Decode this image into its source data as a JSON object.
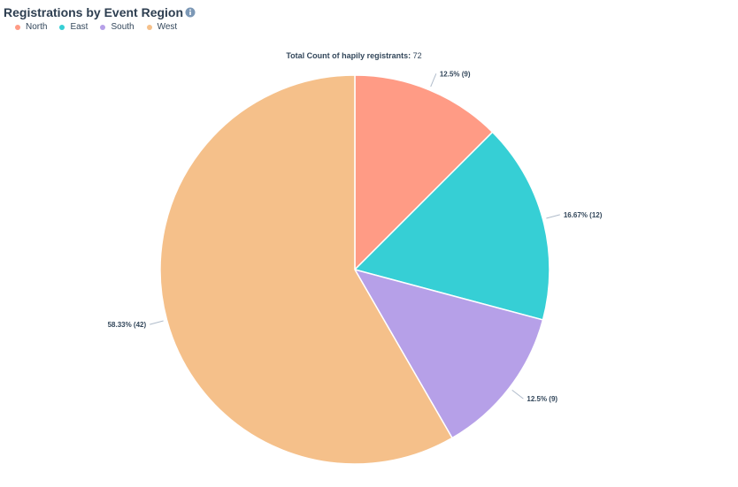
{
  "header": {
    "title": "Registrations by Event Region",
    "info_icon": "info-icon"
  },
  "total": {
    "label": "Total Count of hapily registrants:",
    "value": "72"
  },
  "chart_data": {
    "type": "pie",
    "categories": [
      "North",
      "East",
      "South",
      "West"
    ],
    "values": [
      9,
      12,
      9,
      42
    ],
    "labels": [
      "12.5% (9)",
      "16.67% (12)",
      "12.5% (9)",
      "58.33% (42)"
    ],
    "colors": [
      "#ff9b85",
      "#36cfd5",
      "#b6a0e8",
      "#f5c08a"
    ],
    "legend_position": "top-left"
  }
}
